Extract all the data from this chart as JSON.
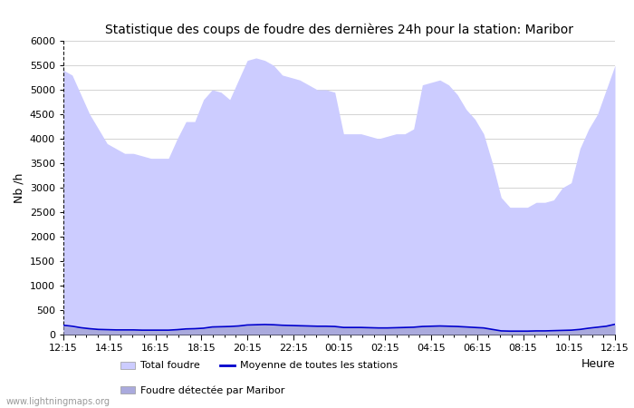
{
  "title": "Statistique des coups de foudre des dernières 24h pour la station: Maribor",
  "ylabel": "Nb /h",
  "xlabel": "Heure",
  "ylim": [
    0,
    6000
  ],
  "yticks": [
    0,
    500,
    1000,
    1500,
    2000,
    2500,
    3000,
    3500,
    4000,
    4500,
    5000,
    5500,
    6000
  ],
  "xtick_labels": [
    "12:15",
    "14:15",
    "16:15",
    "18:15",
    "20:15",
    "22:15",
    "00:15",
    "02:15",
    "04:15",
    "06:15",
    "08:15",
    "10:15",
    "12:15"
  ],
  "watermark": "www.lightningmaps.org",
  "color_total": "#ccccff",
  "color_maribor": "#aaaadd",
  "color_avg_line": "#0000cc",
  "background_color": "#ffffff",
  "plot_bg_color": "#ffffff",
  "total_foudre": [
    5400,
    5300,
    4900,
    4500,
    4200,
    3900,
    3800,
    3700,
    3700,
    3650,
    3600,
    3600,
    3600,
    4000,
    4350,
    4350,
    4800,
    5000,
    4950,
    4800,
    5200,
    5600,
    5650,
    5600,
    5500,
    5300,
    5250,
    5200,
    5100,
    5000,
    5000,
    4950,
    4100,
    4100,
    4100,
    4050,
    4000,
    4050,
    4100,
    4100,
    4200,
    5100,
    5150,
    5200,
    5100,
    4900,
    4600,
    4400,
    4100,
    3500,
    2800,
    2600,
    2600,
    2600,
    2700,
    2700,
    2750,
    3000,
    3100,
    3800,
    4200,
    4500,
    5000,
    5500
  ],
  "maribor_foudre": [
    180,
    150,
    130,
    120,
    100,
    95,
    90,
    90,
    90,
    90,
    85,
    85,
    85,
    100,
    110,
    115,
    120,
    150,
    155,
    160,
    170,
    185,
    190,
    195,
    190,
    185,
    180,
    175,
    170,
    165,
    165,
    160,
    140,
    140,
    140,
    135,
    130,
    130,
    135,
    140,
    145,
    160,
    165,
    170,
    165,
    160,
    150,
    140,
    130,
    100,
    70,
    65,
    65,
    65,
    70,
    70,
    75,
    80,
    85,
    100,
    120,
    140,
    165,
    200
  ],
  "avg_line": [
    190,
    170,
    140,
    120,
    105,
    100,
    95,
    95,
    95,
    90,
    90,
    90,
    90,
    100,
    115,
    120,
    130,
    155,
    160,
    165,
    175,
    195,
    200,
    205,
    200,
    190,
    185,
    180,
    175,
    170,
    170,
    165,
    145,
    145,
    145,
    140,
    135,
    135,
    140,
    145,
    150,
    165,
    170,
    175,
    170,
    165,
    155,
    145,
    135,
    105,
    75,
    70,
    70,
    70,
    75,
    75,
    80,
    85,
    90,
    105,
    130,
    150,
    170,
    210
  ],
  "n_points": 64
}
